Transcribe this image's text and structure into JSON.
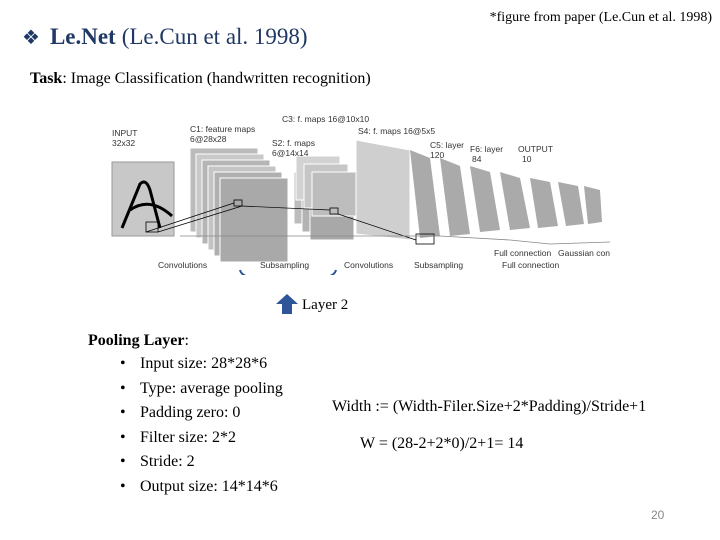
{
  "figure_credit": "*figure from paper (Le.Cun et al. 1998)",
  "title": {
    "bullet": "❖",
    "main": "Le.Net",
    "cite": "(Le.Cun et al. 1998)"
  },
  "task": {
    "label": "Task",
    "text": ": Image Classification (handwritten recognition)"
  },
  "figure": {
    "input_label": "INPUT",
    "input_size": "32x32",
    "c1_label": "C1: feature maps",
    "c1_size": "6@28x28",
    "c3_label": "C3: f. maps 16@10x10",
    "s2_label": "S2: f. maps",
    "s2_size": "6@14x14",
    "s4_label": "S4: f. maps 16@5x5",
    "c5_label": "C5: layer",
    "c5_size": "120",
    "f6_label": "F6: layer",
    "f6_size": "84",
    "output_label": "OUTPUT",
    "output_size": "10",
    "convolutions_1": "Convolutions",
    "subsampling_1": "Subsampling",
    "convolutions_2": "Convolutions",
    "subsampling_2": "Subsampling",
    "full_connection_1": "Full connection",
    "full_connection_2": "Full connection",
    "gaussian": "Gaussian connections"
  },
  "layer_label": "Layer 2",
  "pooling": {
    "title": "Pooling Layer",
    "colon": ":",
    "items": [
      "Input size: 28*28*6",
      "Type: average pooling",
      "Padding zero: 0",
      "Filter size: 2*2",
      "Stride: 2",
      "Output size: 14*14*6"
    ]
  },
  "formula": "Width := (Width-Filer.Size+2*Padding)/Stride+1",
  "example": "W = (28-2+2*0)/2+1= 14",
  "page_number": "20",
  "colors": {
    "title": "#1f3864",
    "arrow": "#2e5597"
  }
}
